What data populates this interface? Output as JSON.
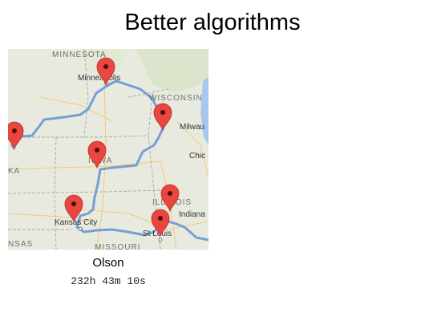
{
  "page": {
    "title": "Better algorithms"
  },
  "map": {
    "state_labels": {
      "minnesota": "MINNESOTA",
      "wisconsin": "WISCONSIN",
      "iowa": "IOWA",
      "illinois": "ILLINOIS",
      "missouri": "MISSOURI",
      "kansas": "NSAS",
      "nebraska": "KA"
    },
    "city_labels": {
      "minneapolis": "Minneapolis",
      "milwaukee": "Milwau",
      "chicago": "Chic",
      "kansas_city": "Kansas City",
      "st_louis": "St Louis",
      "indianapolis": "Indiana"
    },
    "colors": {
      "route": "#6e9bd4",
      "marker": "#e8463f",
      "water": "#a6c8f0",
      "land": "#e9eadf"
    }
  },
  "result": {
    "algorithm": "Olson",
    "duration": "232h 43m 10s"
  }
}
